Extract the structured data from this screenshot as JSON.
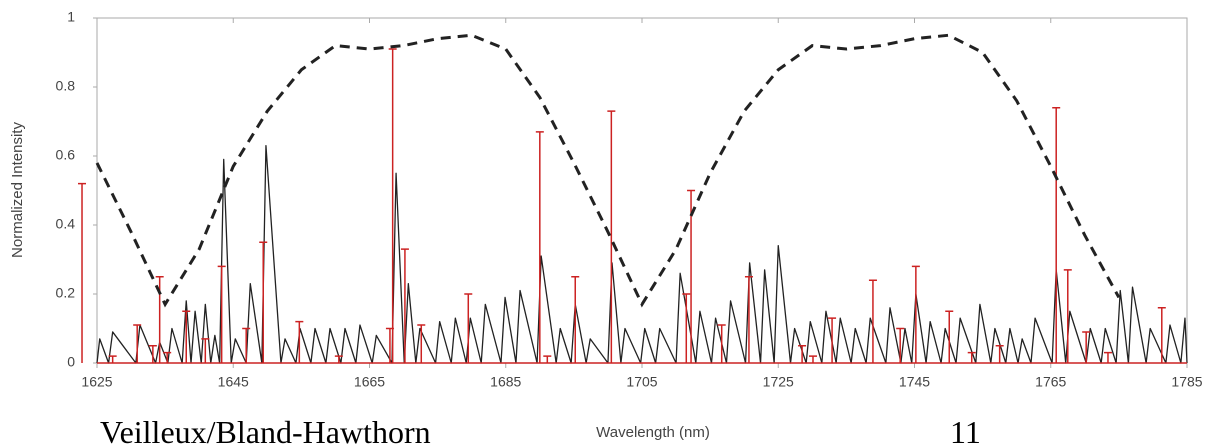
{
  "chart_data": {
    "type": "line",
    "x_label": "Wavelength (nm)",
    "y_label": "Normalized Intensity",
    "xlim": [
      1625,
      1785
    ],
    "ylim": [
      0,
      1
    ],
    "xticks": [
      1625,
      1645,
      1665,
      1685,
      1705,
      1725,
      1745,
      1765,
      1785
    ],
    "yticks": [
      0,
      0.2,
      0.4,
      0.6,
      0.8,
      1
    ],
    "grid": false,
    "series": [
      {
        "kind": "line",
        "color": "#222222",
        "x": [
          1625.0,
          1625.4,
          1626.7,
          1627.3,
          1630.7,
          1631.3,
          1633.6,
          1634.2,
          1635.4,
          1636.0,
          1637.5,
          1638.1,
          1638.8,
          1639.4,
          1640.3,
          1640.9,
          1641.7,
          1642.3,
          1643.0,
          1643.6,
          1644.7,
          1645.3,
          1646.9,
          1647.5,
          1649.2,
          1649.8,
          1652.0,
          1652.6,
          1654.2,
          1654.8,
          1656.4,
          1657.0,
          1658.6,
          1659.2,
          1660.8,
          1661.4,
          1663.0,
          1663.6,
          1665.4,
          1666.0,
          1668.3,
          1668.9,
          1670.1,
          1670.7,
          1671.8,
          1672.4,
          1674.7,
          1675.3,
          1677.0,
          1677.6,
          1679.2,
          1679.8,
          1681.4,
          1682.0,
          1684.3,
          1684.9,
          1686.5,
          1687.1,
          1689.6,
          1690.2,
          1692.4,
          1693.0,
          1694.6,
          1695.2,
          1696.8,
          1697.4,
          1700.0,
          1700.6,
          1701.9,
          1702.5,
          1704.8,
          1705.4,
          1707.0,
          1707.6,
          1710.0,
          1710.6,
          1712.9,
          1713.5,
          1715.2,
          1715.8,
          1717.4,
          1718.0,
          1720.2,
          1720.8,
          1722.4,
          1723.0,
          1724.4,
          1725.0,
          1726.8,
          1727.4,
          1729.1,
          1729.7,
          1731.4,
          1732.0,
          1733.5,
          1734.1,
          1735.7,
          1736.3,
          1737.9,
          1738.5,
          1740.8,
          1741.4,
          1743.0,
          1743.6,
          1744.6,
          1745.2,
          1746.7,
          1747.3,
          1748.9,
          1749.5,
          1751.1,
          1751.7,
          1754.0,
          1754.6,
          1756.2,
          1756.8,
          1758.4,
          1759.0,
          1760.2,
          1760.8,
          1762.1,
          1762.7,
          1765.2,
          1765.8,
          1767.2,
          1767.8,
          1770.2,
          1770.8,
          1772.4,
          1773.0,
          1774.6,
          1775.2,
          1776.4,
          1777.0,
          1779.0,
          1779.6,
          1781.9,
          1782.5,
          1784.1,
          1784.7,
          1785.0
        ],
        "values": [
          0,
          0.07,
          0,
          0.09,
          0,
          0.11,
          0,
          0.06,
          0,
          0.1,
          0,
          0.18,
          0,
          0.15,
          0,
          0.17,
          0,
          0.08,
          0,
          0.59,
          0,
          0.07,
          0,
          0.23,
          0,
          0.63,
          0,
          0.07,
          0,
          0.1,
          0,
          0.1,
          0,
          0.1,
          0,
          0.1,
          0,
          0.11,
          0,
          0.08,
          0,
          0.55,
          0,
          0.23,
          0,
          0.1,
          0,
          0.12,
          0,
          0.13,
          0,
          0.13,
          0,
          0.17,
          0,
          0.19,
          0,
          0.21,
          0,
          0.31,
          0,
          0.1,
          0,
          0.17,
          0,
          0.07,
          0,
          0.29,
          0,
          0.1,
          0,
          0.1,
          0,
          0.1,
          0,
          0.26,
          0,
          0.15,
          0,
          0.13,
          0,
          0.18,
          0,
          0.29,
          0,
          0.27,
          0,
          0.34,
          0,
          0.1,
          0,
          0.12,
          0,
          0.15,
          0,
          0.13,
          0,
          0.1,
          0,
          0.13,
          0,
          0.16,
          0,
          0.1,
          0,
          0.2,
          0,
          0.12,
          0,
          0.1,
          0,
          0.13,
          0,
          0.17,
          0,
          0.1,
          0,
          0.1,
          0,
          0.07,
          0,
          0.13,
          0,
          0.27,
          0,
          0.15,
          0,
          0.1,
          0,
          0.1,
          0,
          0.21,
          0,
          0.22,
          0,
          0.1,
          0,
          0.11,
          0,
          0.13,
          0
        ]
      },
      {
        "kind": "stem",
        "color": "#cc2222",
        "x": [
          1622.8,
          1627.3,
          1630.9,
          1633.2,
          1634.2,
          1635.3,
          1638.1,
          1640.9,
          1643.3,
          1646.9,
          1649.4,
          1654.7,
          1660.5,
          1668.0,
          1668.4,
          1670.2,
          1672.6,
          1679.5,
          1690.0,
          1691.1,
          1695.2,
          1700.5,
          1711.5,
          1712.2,
          1716.7,
          1720.7,
          1728.5,
          1730.1,
          1732.9,
          1738.9,
          1742.9,
          1745.2,
          1750.1,
          1753.4,
          1757.5,
          1765.8,
          1767.5,
          1770.2,
          1773.4,
          1781.3
        ],
        "values": [
          0.52,
          0.02,
          0.11,
          0.05,
          0.25,
          0.03,
          0.15,
          0.07,
          0.28,
          0.1,
          0.35,
          0.12,
          0.02,
          0.1,
          0.91,
          0.33,
          0.11,
          0.2,
          0.67,
          0.02,
          0.25,
          0.73,
          0.2,
          0.5,
          0.11,
          0.25,
          0.05,
          0.02,
          0.13,
          0.24,
          0.1,
          0.28,
          0.15,
          0.03,
          0.05,
          0.74,
          0.27,
          0.09,
          0.03,
          0.16
        ]
      },
      {
        "kind": "dashed",
        "color": "#222222",
        "x": [
          1625,
          1630,
          1635,
          1640,
          1645,
          1650,
          1655,
          1660,
          1665,
          1670,
          1675,
          1680,
          1685,
          1690,
          1695,
          1700,
          1705,
          1710,
          1715,
          1720,
          1725,
          1730,
          1735,
          1740,
          1745,
          1750,
          1755,
          1760,
          1765,
          1770,
          1775
        ],
        "values": [
          0.58,
          0.38,
          0.17,
          0.33,
          0.57,
          0.73,
          0.85,
          0.92,
          0.91,
          0.92,
          0.94,
          0.95,
          0.91,
          0.77,
          0.58,
          0.38,
          0.17,
          0.33,
          0.55,
          0.73,
          0.85,
          0.92,
          0.91,
          0.92,
          0.94,
          0.95,
          0.9,
          0.76,
          0.57,
          0.37,
          0.19
        ]
      }
    ]
  },
  "slide_footer": {
    "author": "Veilleux/Bland-Hawthorn",
    "page": "11"
  }
}
